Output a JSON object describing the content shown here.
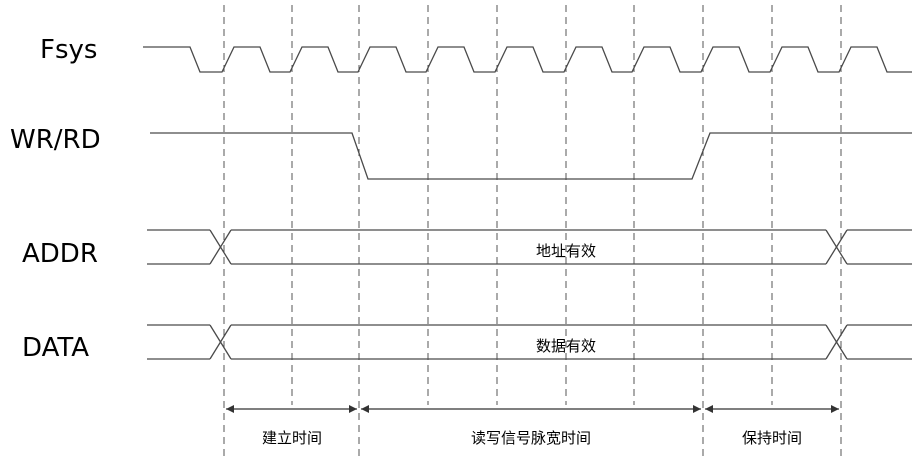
{
  "signals": {
    "fsys": "Fsys",
    "wrrd": "WR/RD",
    "addr": "ADDR",
    "data": "DATA"
  },
  "buses": {
    "addr_valid": "地址有效",
    "data_valid": "数据有效"
  },
  "intervals": {
    "setup": "建立时间",
    "pulse": "读写信号脉宽时间",
    "hold": "保持时间"
  }
}
